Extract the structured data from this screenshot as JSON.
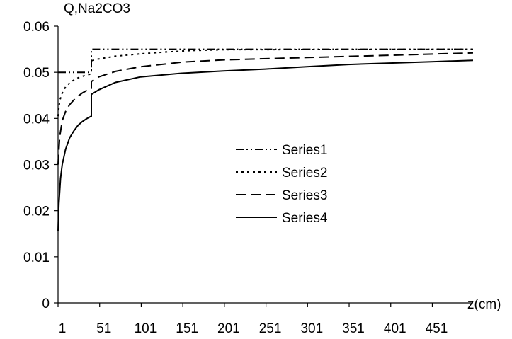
{
  "chart_data": {
    "type": "line",
    "ylabel": "Q,Na2CO3",
    "xlabel": "z(cm)",
    "xlim": [
      1,
      500
    ],
    "ylim": [
      0,
      0.06
    ],
    "x_ticks": [
      1,
      51,
      101,
      151,
      201,
      251,
      301,
      351,
      401,
      451
    ],
    "y_ticks": [
      0,
      0.01,
      0.02,
      0.03,
      0.04,
      0.05,
      0.06
    ],
    "y_tick_labels": [
      "0",
      "0.01",
      "0.02",
      "0.03",
      "0.04",
      "0.05",
      "0.06"
    ],
    "grid": false,
    "legend_position": "center-right",
    "series": [
      {
        "name": "Series1",
        "dash": "dash-dot-dot",
        "x": [
          1,
          35,
          41,
          41,
          60,
          500
        ],
        "y": [
          0.05,
          0.05,
          0.05,
          0.055,
          0.055,
          0.055
        ]
      },
      {
        "name": "Series2",
        "dash": "dotted",
        "x": [
          1,
          3,
          6,
          10,
          15,
          20,
          25,
          30,
          35,
          40,
          41,
          41,
          50,
          70,
          100,
          130,
          160,
          200,
          500
        ],
        "y": [
          0.0405,
          0.0438,
          0.0455,
          0.0468,
          0.0477,
          0.0483,
          0.0488,
          0.0491,
          0.0494,
          0.0496,
          0.0497,
          0.0525,
          0.0529,
          0.0535,
          0.054,
          0.0544,
          0.0547,
          0.0549,
          0.055
        ]
      },
      {
        "name": "Series3",
        "dash": "dashed",
        "x": [
          1,
          3,
          6,
          10,
          15,
          20,
          25,
          30,
          35,
          40,
          41,
          41,
          50,
          70,
          100,
          150,
          200,
          300,
          400,
          500
        ],
        "y": [
          0.03,
          0.036,
          0.0395,
          0.0415,
          0.043,
          0.044,
          0.0448,
          0.0455,
          0.046,
          0.0463,
          0.0465,
          0.048,
          0.049,
          0.0502,
          0.0512,
          0.0522,
          0.0527,
          0.0532,
          0.0537,
          0.0542
        ]
      },
      {
        "name": "Series4",
        "dash": "solid",
        "x": [
          1,
          2,
          4,
          6,
          10,
          15,
          20,
          25,
          30,
          35,
          40,
          41,
          41,
          50,
          70,
          100,
          150,
          200,
          250,
          300,
          350,
          400,
          450,
          500
        ],
        "y": [
          0.0155,
          0.0215,
          0.027,
          0.03,
          0.0333,
          0.0358,
          0.0373,
          0.0385,
          0.0393,
          0.0399,
          0.0404,
          0.0405,
          0.0452,
          0.0462,
          0.0478,
          0.049,
          0.0498,
          0.0503,
          0.0507,
          0.0512,
          0.0517,
          0.052,
          0.0523,
          0.0526
        ]
      }
    ]
  }
}
